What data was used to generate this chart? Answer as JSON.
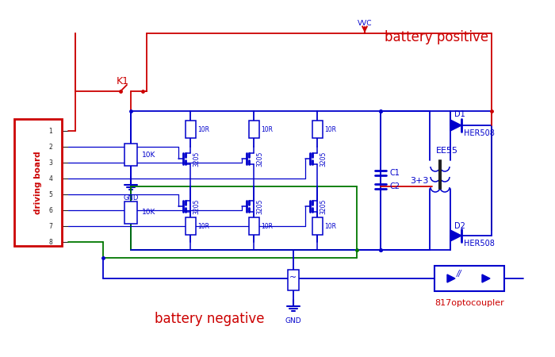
{
  "bg_color": "#ffffff",
  "blue": "#0000cc",
  "red": "#cc0000",
  "green": "#007700",
  "dark": "#222222",
  "labels": {
    "battery_positive": "battery positive",
    "battery_negative": "battery negative",
    "vvc": "VVC",
    "k1": "K1",
    "driving_board": "driving board",
    "gnd1": "GND",
    "gnd2": "GND",
    "ee55": "EE55",
    "tpt": "3+3",
    "c1": "C1",
    "c2": "C2",
    "d1": "D1",
    "d2": "D2",
    "her508_1": "HER508",
    "her508_2": "HER508",
    "optocoupler": "817optocoupler",
    "10k_1": "10K",
    "10k_2": "10K",
    "10r_labels": [
      "10R",
      "10R",
      "10R",
      "10R",
      "10R",
      "10R"
    ],
    "3205_labels": [
      "3205",
      "3205",
      "3205",
      "3205",
      "3205",
      "3205"
    ]
  },
  "figsize": [
    7.0,
    4.5
  ],
  "dpi": 100
}
